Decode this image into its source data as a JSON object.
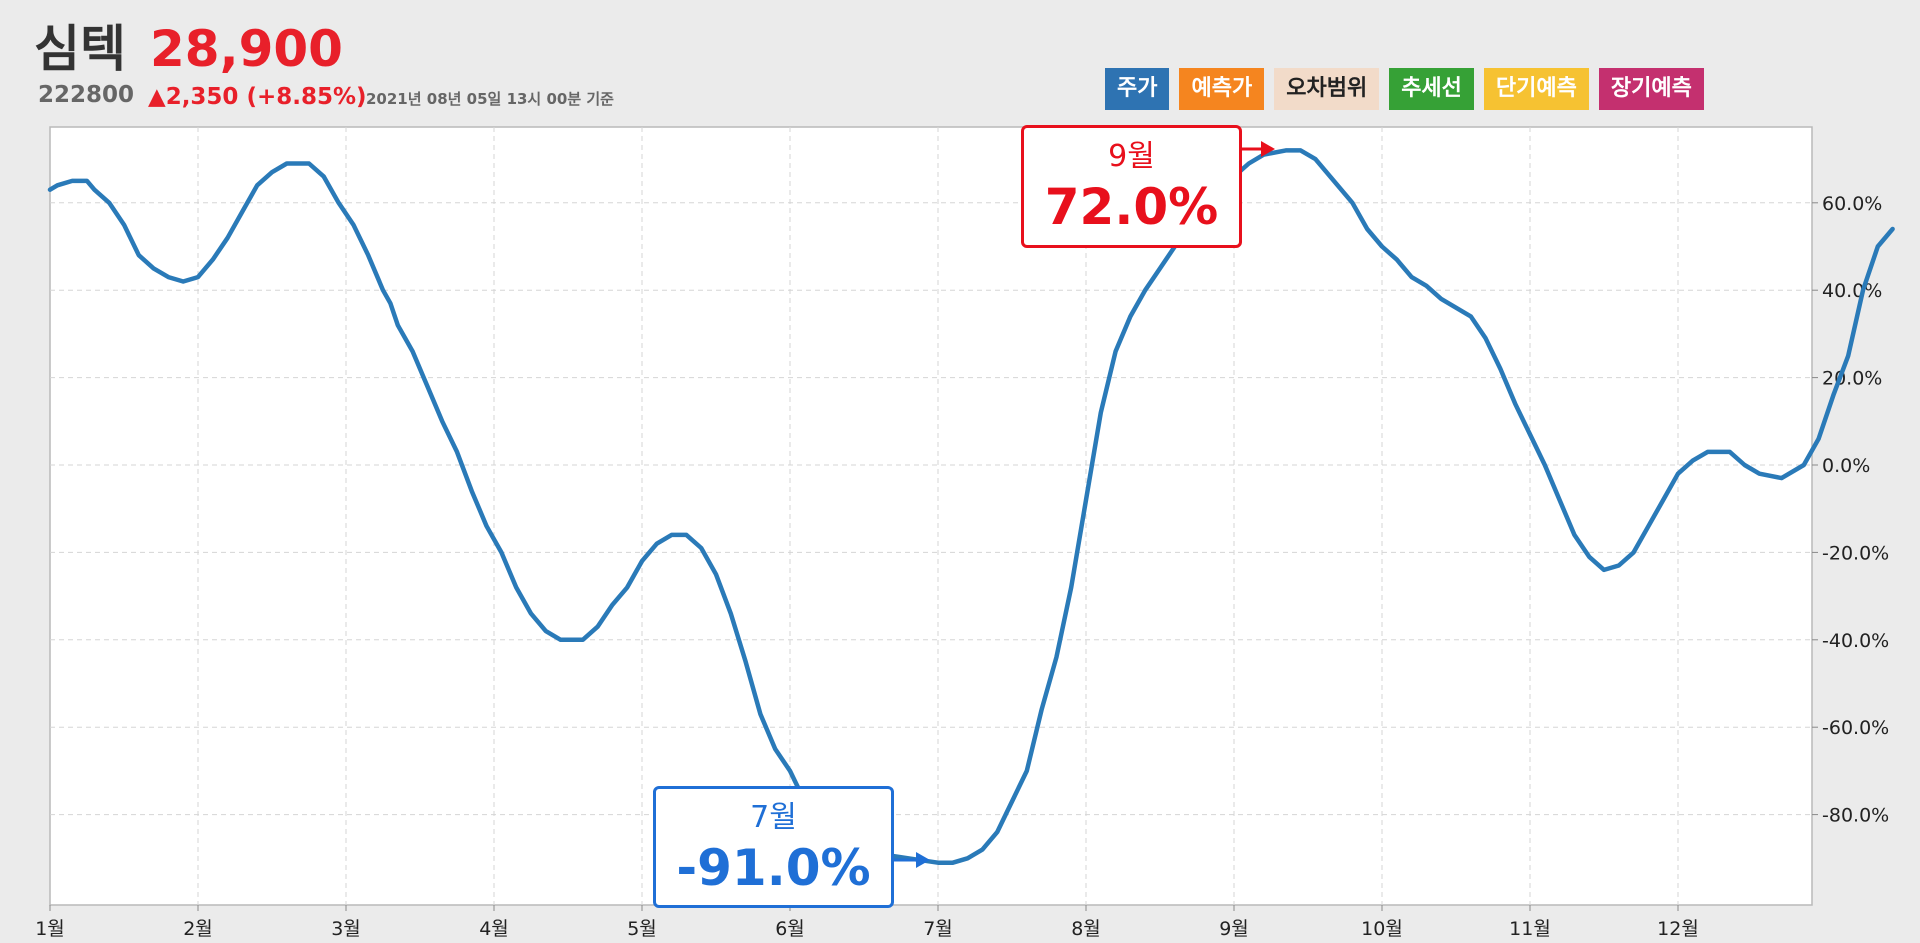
{
  "header": {
    "name": "심텍",
    "price": "28,900",
    "code": "222800",
    "change": "▲2,350 (+8.85%)",
    "timestamp": "2021년 08년 05일 13시 00분 기준"
  },
  "legend": [
    {
      "label": "주가",
      "bg": "#2e73b2",
      "fg": "#ffffff"
    },
    {
      "label": "예측가",
      "bg": "#f5851f",
      "fg": "#ffffff"
    },
    {
      "label": "오차범위",
      "bg": "#f2dbc9",
      "fg": "#222222"
    },
    {
      "label": "추세선",
      "bg": "#36a136",
      "fg": "#ffffff"
    },
    {
      "label": "단기예측",
      "bg": "#f6c232",
      "fg": "#ffffff"
    },
    {
      "label": "장기예측",
      "bg": "#c4306f",
      "fg": "#ffffff"
    }
  ],
  "annotations": {
    "max": {
      "month": "9월",
      "value": "72.0%",
      "color": "#e8101c"
    },
    "min": {
      "month": "7월",
      "value": "-91.0%",
      "color": "#1f6fd6"
    }
  },
  "chart_data": {
    "type": "line",
    "x_categories": [
      "1월",
      "2월",
      "3월",
      "4월",
      "5월",
      "6월",
      "7월",
      "8월",
      "9월",
      "10월",
      "11월",
      "12월"
    ],
    "y_ticks": [
      "60.0%",
      "40.0%",
      "20.0%",
      "0.0%",
      "-20.0%",
      "-40.0%",
      "-60.0%",
      "-80.0%"
    ],
    "ylim": [
      -100,
      75
    ],
    "grid": true,
    "line_color": "#2a7ab8",
    "series": [
      {
        "values": [
          [
            1.0,
            63
          ],
          [
            1.05,
            64
          ],
          [
            1.15,
            65
          ],
          [
            1.25,
            65
          ],
          [
            1.3,
            63
          ],
          [
            1.4,
            60
          ],
          [
            1.5,
            55
          ],
          [
            1.6,
            48
          ],
          [
            1.7,
            45
          ],
          [
            1.8,
            43
          ],
          [
            1.9,
            42
          ],
          [
            2.0,
            43
          ],
          [
            2.1,
            47
          ],
          [
            2.2,
            52
          ],
          [
            2.3,
            58
          ],
          [
            2.4,
            64
          ],
          [
            2.5,
            67
          ],
          [
            2.6,
            69
          ],
          [
            2.75,
            69
          ],
          [
            2.85,
            66
          ],
          [
            2.95,
            60
          ],
          [
            3.05,
            55
          ],
          [
            3.15,
            48
          ],
          [
            3.25,
            40
          ],
          [
            3.3,
            37
          ],
          [
            3.35,
            32
          ],
          [
            3.45,
            26
          ],
          [
            3.55,
            18
          ],
          [
            3.65,
            10
          ],
          [
            3.75,
            3
          ],
          [
            3.85,
            -6
          ],
          [
            3.95,
            -14
          ],
          [
            4.05,
            -20
          ],
          [
            4.15,
            -28
          ],
          [
            4.25,
            -34
          ],
          [
            4.35,
            -38
          ],
          [
            4.45,
            -40
          ],
          [
            4.6,
            -40
          ],
          [
            4.7,
            -37
          ],
          [
            4.8,
            -32
          ],
          [
            4.9,
            -28
          ],
          [
            5.0,
            -22
          ],
          [
            5.1,
            -18
          ],
          [
            5.2,
            -16
          ],
          [
            5.3,
            -16
          ],
          [
            5.4,
            -19
          ],
          [
            5.5,
            -25
          ],
          [
            5.6,
            -34
          ],
          [
            5.7,
            -45
          ],
          [
            5.8,
            -57
          ],
          [
            5.9,
            -65
          ],
          [
            6.0,
            -70
          ],
          [
            6.1,
            -77
          ],
          [
            6.2,
            -83
          ],
          [
            6.4,
            -88
          ],
          [
            6.6,
            -89
          ],
          [
            6.8,
            -90
          ],
          [
            7.0,
            -91
          ],
          [
            7.1,
            -91
          ],
          [
            7.2,
            -90
          ],
          [
            7.3,
            -88
          ],
          [
            7.4,
            -84
          ],
          [
            7.5,
            -77
          ],
          [
            7.6,
            -70
          ],
          [
            7.7,
            -56
          ],
          [
            7.8,
            -44
          ],
          [
            7.9,
            -28
          ],
          [
            8.0,
            -8
          ],
          [
            8.1,
            12
          ],
          [
            8.2,
            26
          ],
          [
            8.3,
            34
          ],
          [
            8.4,
            40
          ],
          [
            8.5,
            45
          ],
          [
            8.6,
            50
          ],
          [
            8.7,
            55
          ],
          [
            8.8,
            58
          ],
          [
            8.9,
            62
          ],
          [
            9.0,
            66
          ],
          [
            9.1,
            69
          ],
          [
            9.2,
            71
          ],
          [
            9.35,
            72
          ],
          [
            9.45,
            72
          ],
          [
            9.55,
            70
          ],
          [
            9.65,
            66
          ],
          [
            9.8,
            60
          ],
          [
            9.9,
            54
          ],
          [
            10.0,
            50
          ],
          [
            10.1,
            47
          ],
          [
            10.2,
            43
          ],
          [
            10.3,
            41
          ],
          [
            10.4,
            38
          ],
          [
            10.5,
            36
          ],
          [
            10.6,
            34
          ],
          [
            10.7,
            29
          ],
          [
            10.8,
            22
          ],
          [
            10.9,
            14
          ],
          [
            11.0,
            7
          ],
          [
            11.1,
            0
          ],
          [
            11.2,
            -8
          ],
          [
            11.3,
            -16
          ],
          [
            11.4,
            -21
          ],
          [
            11.5,
            -24
          ],
          [
            11.6,
            -23
          ],
          [
            11.7,
            -20
          ],
          [
            11.8,
            -14
          ],
          [
            11.9,
            -8
          ],
          [
            12.0,
            -2
          ],
          [
            12.1,
            1
          ],
          [
            12.2,
            3
          ],
          [
            12.35,
            3
          ],
          [
            12.45,
            0
          ],
          [
            12.55,
            -2
          ],
          [
            12.7,
            -3
          ],
          [
            12.85,
            0
          ],
          [
            12.95,
            6
          ],
          [
            13.05,
            16
          ],
          [
            13.15,
            25
          ],
          [
            13.25,
            40
          ],
          [
            13.35,
            50
          ],
          [
            13.45,
            54
          ]
        ]
      }
    ]
  }
}
